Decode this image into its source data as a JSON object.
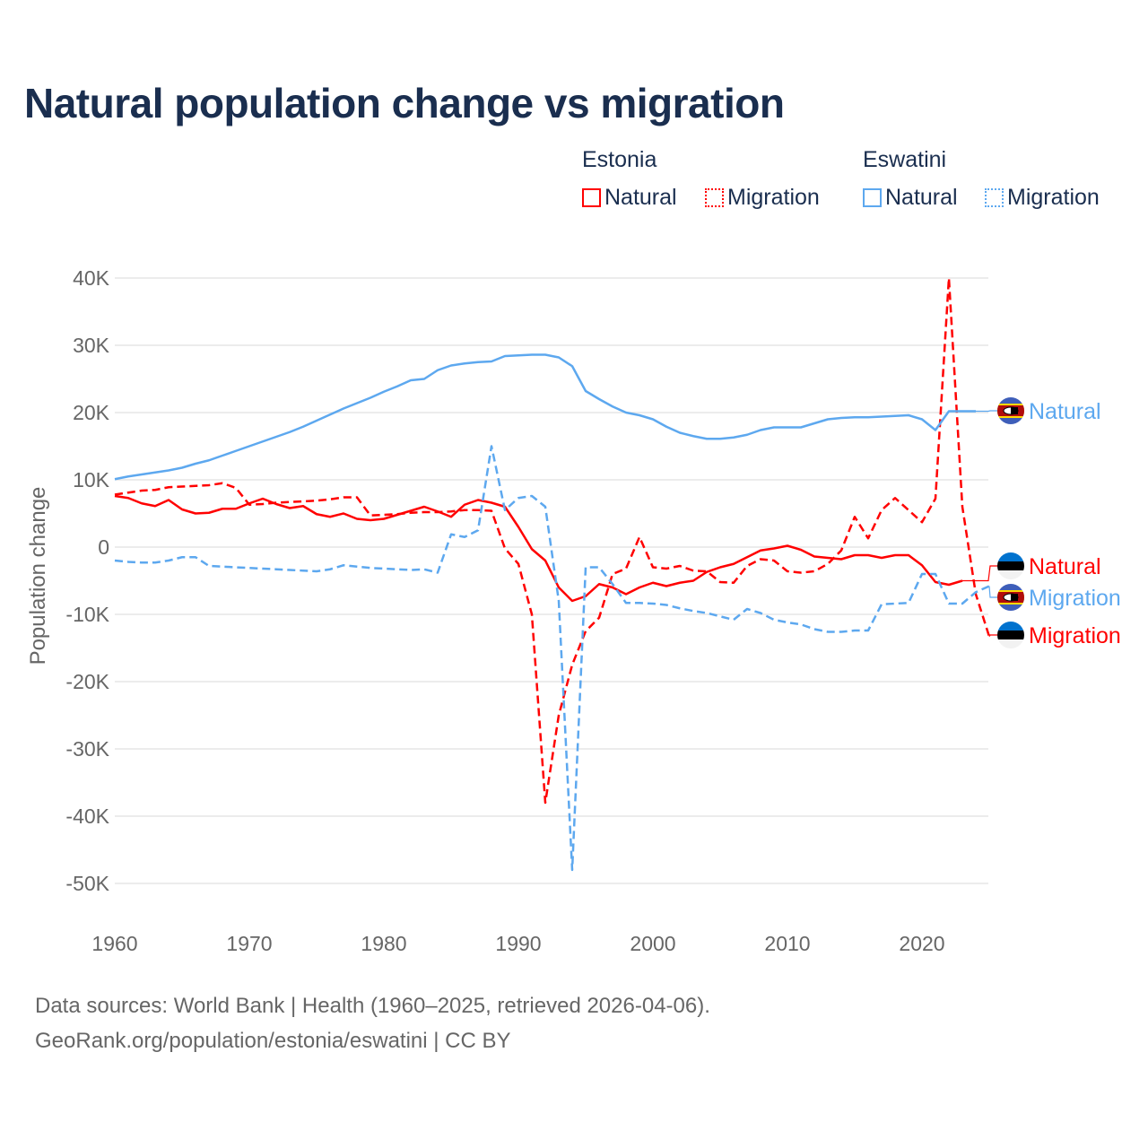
{
  "title": "Natural population change vs migration",
  "legend": {
    "groups": [
      {
        "name": "Estonia",
        "color": "#ff0000",
        "items": [
          "Natural",
          "Migration"
        ]
      },
      {
        "name": "Eswatini",
        "color": "#5da8ef",
        "items": [
          "Natural",
          "Migration"
        ]
      }
    ]
  },
  "footer": {
    "line1": "Data sources: World Bank | Health (1960–2025, retrieved 2026-04-06).",
    "line2": "GeoRank.org/population/estonia/eswatini | CC BY"
  },
  "chart_data": {
    "type": "line",
    "title": "Natural population change vs migration",
    "xlabel": "",
    "ylabel": "Population change",
    "xlim": [
      1960,
      2025
    ],
    "ylim": [
      -50000,
      40000
    ],
    "x_ticks": [
      1960,
      1970,
      1980,
      1990,
      2000,
      2010,
      2020
    ],
    "x_tick_labels": [
      "1960",
      "1970",
      "1980",
      "1990",
      "2000",
      "2010",
      "2020"
    ],
    "y_ticks": [
      40000,
      30000,
      20000,
      10000,
      0,
      -10000,
      -20000,
      -30000,
      -40000,
      -50000
    ],
    "y_tick_labels": [
      "40K",
      "30K",
      "20K",
      "10K",
      "0",
      "-10K",
      "-20K",
      "-30K",
      "-40K",
      "-50K"
    ],
    "grid": true,
    "legend_position": "top-right",
    "series": [
      {
        "name": "Estonia Natural",
        "label": "Natural",
        "country": "Estonia",
        "color": "#ff0000",
        "dash": false,
        "start": 1960,
        "values": [
          7.6,
          7.3,
          6.5,
          6.1,
          7.0,
          5.6,
          5.0,
          5.1,
          5.7,
          5.7,
          6.5,
          7.2,
          6.4,
          5.8,
          6.1,
          4.9,
          4.5,
          5.0,
          4.2,
          4.0,
          4.2,
          4.8,
          5.4,
          6.0,
          5.3,
          4.5,
          6.3,
          7.0,
          6.6,
          6.0,
          3.0,
          -0.3,
          -2.0,
          -6.0,
          -8.0,
          -7.3,
          -5.5,
          -6.0,
          -7.0,
          -6.0,
          -5.3,
          -5.8,
          -5.3,
          -5.0,
          -3.7,
          -3.0,
          -2.5,
          -1.5,
          -0.5,
          -0.2,
          0.2,
          -0.4,
          -1.4,
          -1.6,
          -1.8,
          -1.2,
          -1.2,
          -1.6,
          -1.2,
          -1.2,
          -2.7,
          -5.2,
          -5.6,
          -5.0
        ],
        "unit": "thousands"
      },
      {
        "name": "Estonia Migration",
        "label": "Migration",
        "country": "Estonia",
        "color": "#ff0000",
        "dash": true,
        "start": 1960,
        "values": [
          7.8,
          8.1,
          8.4,
          8.5,
          8.9,
          9.0,
          9.1,
          9.2,
          9.5,
          8.8,
          6.3,
          6.4,
          6.6,
          6.7,
          6.8,
          6.9,
          7.1,
          7.4,
          7.4,
          4.7,
          4.8,
          4.9,
          5.1,
          5.2,
          5.2,
          5.3,
          5.5,
          5.5,
          5.4,
          -0.2,
          -2.5,
          -10,
          -38,
          -25,
          -17.5,
          -12.5,
          -10.5,
          -4,
          -3.2,
          1.5,
          -3,
          -3.2,
          -2.8,
          -3.5,
          -3.6,
          -5.2,
          -5.3,
          -2.8,
          -1.8,
          -2,
          -3.6,
          -3.8,
          -3.6,
          -2.5,
          -0.5,
          4.5,
          1.3,
          5.5,
          7.3,
          5.5,
          3.7,
          7.2,
          40,
          6,
          -7,
          -13.3
        ],
        "unit": "thousands"
      },
      {
        "name": "Eswatini Natural",
        "label": "Natural",
        "country": "Eswatini",
        "color": "#5da8ef",
        "dash": false,
        "start": 1960,
        "values": [
          10.1,
          10.5,
          10.8,
          11.1,
          11.4,
          11.8,
          12.4,
          12.9,
          13.6,
          14.3,
          15.0,
          15.7,
          16.4,
          17.1,
          17.9,
          18.8,
          19.7,
          20.6,
          21.4,
          22.2,
          23.1,
          23.9,
          24.8,
          25.0,
          26.3,
          27.0,
          27.3,
          27.5,
          27.6,
          28.4,
          28.5,
          28.6,
          28.6,
          28.2,
          26.9,
          23.2,
          22.0,
          20.9,
          20.0,
          19.6,
          19.0,
          17.9,
          17.0,
          16.5,
          16.1,
          16.1,
          16.3,
          16.7,
          17.4,
          17.8,
          17.8,
          17.8,
          18.4,
          19.0,
          19.2,
          19.3,
          19.3,
          19.4,
          19.5,
          19.6,
          19.0,
          17.4,
          20.2,
          20.2,
          20.2
        ],
        "unit": "thousands"
      },
      {
        "name": "Eswatini Migration",
        "label": "Migration",
        "country": "Eswatini",
        "color": "#5da8ef",
        "dash": true,
        "start": 1960,
        "values": [
          -2.0,
          -2.2,
          -2.3,
          -2.3,
          -2.0,
          -1.5,
          -1.5,
          -2.8,
          -2.9,
          -3.0,
          -3.1,
          -3.2,
          -3.3,
          -3.4,
          -3.5,
          -3.6,
          -3.3,
          -2.7,
          -2.9,
          -3.1,
          -3.2,
          -3.3,
          -3.4,
          -3.3,
          -3.8,
          1.9,
          1.5,
          2.5,
          15,
          5.5,
          7.3,
          7.6,
          6,
          -8,
          -48,
          -3,
          -3,
          -5.5,
          -8.3,
          -8.3,
          -8.4,
          -8.6,
          -9.1,
          -9.5,
          -9.8,
          -10.3,
          -10.8,
          -9.2,
          -9.8,
          -10.8,
          -11.2,
          -11.5,
          -12.2,
          -12.6,
          -12.6,
          -12.4,
          -12.4,
          -8.5,
          -8.4,
          -8.3,
          -4,
          -4,
          -8.4,
          -8.4,
          -6.7,
          -5.8
        ],
        "unit": "thousands"
      }
    ]
  }
}
